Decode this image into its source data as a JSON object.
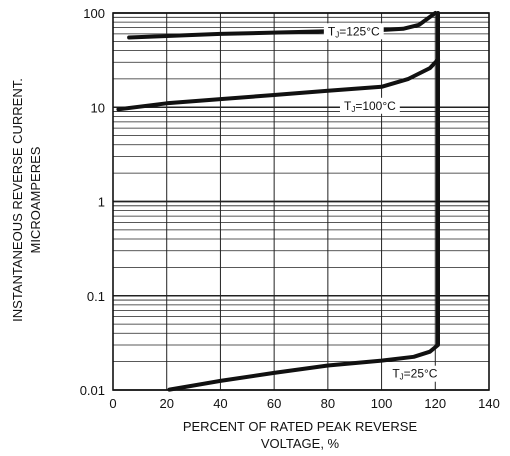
{
  "chart_data": {
    "type": "line",
    "xlabel_lines": [
      "PERCENT OF RATED PEAK REVERSE",
      "VOLTAGE, %"
    ],
    "ylabel_lines": [
      "INSTANTANEOUS REVERSE CURRENT.",
      "MICROAMPERES"
    ],
    "xlim": [
      0,
      140
    ],
    "ylim": [
      0.01,
      100
    ],
    "y_scale": "log",
    "grid": true,
    "x_ticks": [
      0,
      20,
      40,
      60,
      80,
      100,
      120,
      140
    ],
    "x_tick_labels": [
      "0",
      "20",
      "40",
      "60",
      "80",
      "100",
      "120",
      "140"
    ],
    "y_ticks": [
      0.01,
      0.1,
      1,
      10,
      100
    ],
    "y_tick_labels": [
      "0.01",
      "0.1",
      "1",
      "10",
      "100"
    ],
    "series": [
      {
        "name": "TJ=125°C",
        "label_prefix": "T",
        "label_sub": "J",
        "label_rest": "=125°C",
        "label_at": [
          80,
          58
        ],
        "points": [
          [
            6,
            55
          ],
          [
            40,
            60
          ],
          [
            80,
            64
          ],
          [
            100,
            66
          ],
          [
            108,
            68
          ],
          [
            114,
            75
          ],
          [
            120,
            100
          ]
        ]
      },
      {
        "name": "TJ=100°C",
        "label_prefix": "T",
        "label_sub": "J",
        "label_rest": "=100°C",
        "label_at": [
          86,
          9.4
        ],
        "points": [
          [
            2,
            9.5
          ],
          [
            20,
            11
          ],
          [
            40,
            12.2
          ],
          [
            60,
            13.5
          ],
          [
            80,
            15
          ],
          [
            100,
            16.5
          ],
          [
            110,
            20
          ],
          [
            118,
            26
          ],
          [
            121,
            32
          ]
        ]
      },
      {
        "name": "TJ=25°C",
        "label_prefix": "T",
        "label_sub": "J",
        "label_rest": "=25°C",
        "label_at": [
          104,
          0.0135
        ],
        "points": [
          [
            21,
            0.0101
          ],
          [
            40,
            0.0125
          ],
          [
            60,
            0.0152
          ],
          [
            80,
            0.0182
          ],
          [
            100,
            0.0205
          ],
          [
            112,
            0.0225
          ],
          [
            118,
            0.0255
          ],
          [
            121,
            0.03
          ],
          [
            121,
            100
          ]
        ]
      }
    ]
  }
}
